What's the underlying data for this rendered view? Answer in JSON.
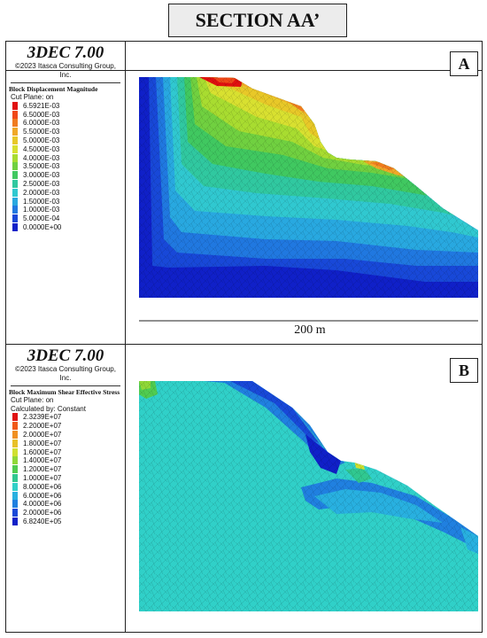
{
  "title": "SECTION AA’",
  "panels": [
    {
      "label": "A",
      "legend": {
        "software": "3DEC 7.00",
        "copyright": "©2023 Itasca Consulting Group, Inc.",
        "quantity": "Block  Displacement Magnitude",
        "lines": [
          "Cut Plane: on"
        ],
        "entries": [
          {
            "value": "6.5921E-03",
            "color": "#e01010"
          },
          {
            "value": "6.5000E-03",
            "color": "#f04818"
          },
          {
            "value": "6.0000E-03",
            "color": "#f07c20"
          },
          {
            "value": "5.5000E-03",
            "color": "#f0a828"
          },
          {
            "value": "5.0000E-03",
            "color": "#e8c828"
          },
          {
            "value": "4.5000E-03",
            "color": "#d8e030"
          },
          {
            "value": "4.0000E-03",
            "color": "#a8dc30"
          },
          {
            "value": "3.5000E-03",
            "color": "#70d040"
          },
          {
            "value": "3.0000E-03",
            "color": "#40c860"
          },
          {
            "value": "2.5000E-03",
            "color": "#30c8a0"
          },
          {
            "value": "2.0000E-03",
            "color": "#30c8d0"
          },
          {
            "value": "1.5000E-03",
            "color": "#28a8e0"
          },
          {
            "value": "1.0000E-03",
            "color": "#2078e0"
          },
          {
            "value": "5.0000E-04",
            "color": "#1848d8"
          },
          {
            "value": "0.0000E+00",
            "color": "#1020c8"
          }
        ]
      }
    },
    {
      "label": "B",
      "legend": {
        "software": "3DEC 7.00",
        "copyright": "©2023 Itasca Consulting Group, Inc.",
        "quantity": "Block  Maximum Shear Effective Stress",
        "lines": [
          "Cut Plane: on",
          "Calculated by: Constant"
        ],
        "entries": [
          {
            "value": "2.3239E+07",
            "color": "#e01010"
          },
          {
            "value": "2.2000E+07",
            "color": "#f05818"
          },
          {
            "value": "2.0000E+07",
            "color": "#f09020"
          },
          {
            "value": "1.8000E+07",
            "color": "#e8c028"
          },
          {
            "value": "1.6000E+07",
            "color": "#d0e030"
          },
          {
            "value": "1.4000E+07",
            "color": "#90d838"
          },
          {
            "value": "1.2000E+07",
            "color": "#50cc50"
          },
          {
            "value": "1.0000E+07",
            "color": "#30c890"
          },
          {
            "value": "8.0000E+06",
            "color": "#30d0c8"
          },
          {
            "value": "6.0000E+06",
            "color": "#28b0e0"
          },
          {
            "value": "4.0000E+06",
            "color": "#2080e0"
          },
          {
            "value": "2.0000E+06",
            "color": "#1848d8"
          },
          {
            "value": "6.8240E+05",
            "color": "#1020c8"
          }
        ]
      }
    }
  ],
  "scale_bar": {
    "label": "200 m"
  }
}
